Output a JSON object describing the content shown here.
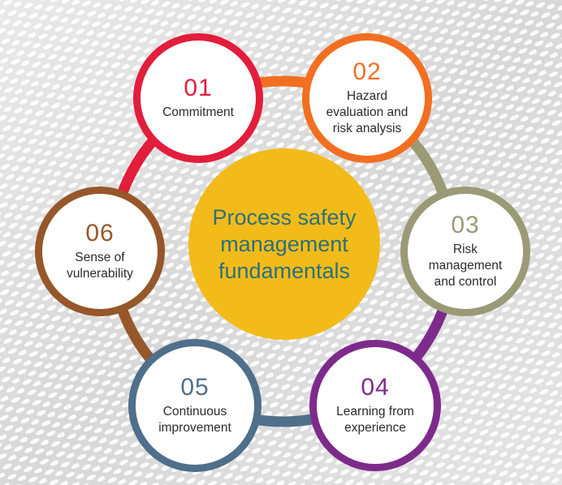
{
  "center": {
    "title": "Process safety management fundamentals"
  },
  "steps": [
    {
      "number": "01",
      "label": "Commitment",
      "color": "#e31d3c"
    },
    {
      "number": "02",
      "label": "Hazard evaluation and risk analysis",
      "color": "#f26f21"
    },
    {
      "number": "03",
      "label": "Risk management and control",
      "color": "#9a9a77"
    },
    {
      "number": "04",
      "label": "Learning from experience",
      "color": "#7d2b8b"
    },
    {
      "number": "05",
      "label": "Continuous improvement",
      "color": "#4f6f8b"
    },
    {
      "number": "06",
      "label": "Sense of vulnerability",
      "color": "#96572a"
    }
  ],
  "colors": {
    "center_fill": "#f2bb1a",
    "center_text": "#2e6f7a",
    "connector_orange": "#f26f21"
  }
}
